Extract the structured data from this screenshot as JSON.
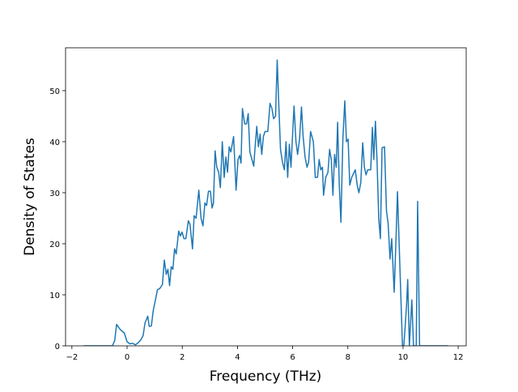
{
  "chart_data": {
    "type": "line",
    "xlabel": "Frequency (THz)",
    "ylabel": "Density of States",
    "color": "#1f77b4",
    "x": [
      -1.58,
      -0.53,
      -0.45,
      -0.38,
      -0.25,
      -0.1,
      0,
      0.1,
      0.2,
      0.3,
      0.4,
      0.5,
      0.58,
      0.65,
      0.75,
      0.8,
      0.88,
      0.95,
      1.02,
      1.1,
      1.18,
      1.28,
      1.35,
      1.42,
      1.48,
      1.54,
      1.6,
      1.66,
      1.72,
      1.78,
      1.87,
      1.93,
      1.99,
      2.06,
      2.13,
      2.22,
      2.28,
      2.37,
      2.43,
      2.5,
      2.6,
      2.68,
      2.75,
      2.82,
      2.88,
      2.95,
      3.02,
      3.08,
      3.13,
      3.19,
      3.25,
      3.32,
      3.38,
      3.45,
      3.52,
      3.58,
      3.64,
      3.7,
      3.76,
      3.86,
      3.95,
      4.02,
      4.08,
      4.13,
      4.18,
      4.26,
      4.33,
      4.39,
      4.45,
      4.59,
      4.64,
      4.7,
      4.76,
      4.82,
      4.88,
      4.94,
      5.0,
      5.1,
      5.18,
      5.25,
      5.31,
      5.38,
      5.44,
      5.5,
      5.56,
      5.63,
      5.7,
      5.76,
      5.82,
      5.88,
      5.94,
      6.05,
      6.12,
      6.18,
      6.25,
      6.32,
      6.38,
      6.45,
      6.52,
      6.58,
      6.65,
      6.75,
      6.82,
      6.9,
      6.96,
      7.02,
      7.08,
      7.12,
      7.2,
      7.28,
      7.34,
      7.4,
      7.46,
      7.52,
      7.58,
      7.63,
      7.69,
      7.75,
      7.82,
      7.89,
      7.95,
      8.01,
      8.07,
      8.14,
      8.27,
      8.34,
      8.4,
      8.47,
      8.54,
      8.6,
      8.66,
      8.72,
      8.83,
      8.89,
      8.94,
      9.0,
      9.06,
      9.12,
      9.18,
      9.24,
      9.33,
      9.4,
      9.46,
      9.53,
      9.59,
      9.68,
      9.74,
      9.8,
      9.86,
      9.92,
      9.98,
      10.03,
      10.08,
      10.13,
      10.17,
      10.23,
      10.32,
      10.38,
      10.48,
      10.53,
      10.6,
      11.64
    ],
    "values": [
      0,
      0,
      1,
      4.2,
      3.2,
      2.5,
      0.8,
      0.4,
      0.5,
      0.2,
      0.6,
      1.2,
      2,
      4.5,
      5.8,
      3.8,
      3.9,
      7,
      8.8,
      11,
      11.2,
      12,
      16.8,
      14,
      15,
      11.8,
      15.5,
      15,
      19,
      18,
      22.5,
      21.5,
      22.3,
      21,
      21,
      24.5,
      23.8,
      19,
      25.5,
      25,
      30.5,
      25,
      23.5,
      28,
      27.5,
      30.3,
      30.3,
      27,
      28,
      38.2,
      35,
      34,
      31,
      40,
      33,
      37,
      34,
      39,
      38,
      41,
      30.5,
      36.5,
      37.3,
      35.8,
      46.5,
      43.5,
      43.5,
      45.5,
      38,
      35.2,
      39,
      43,
      39,
      41.5,
      37.5,
      41,
      42,
      42,
      47.5,
      46.5,
      44.5,
      45,
      56,
      47,
      38.5,
      36,
      34.5,
      40,
      33,
      39.5,
      35,
      47,
      40,
      37.5,
      40.5,
      46.8,
      41,
      37,
      35,
      36,
      42,
      40,
      33,
      33,
      36.5,
      34.5,
      35,
      29.5,
      33,
      34,
      38.5,
      36.5,
      29.5,
      37.5,
      35,
      43.8,
      31.5,
      24.2,
      40.5,
      48,
      40,
      40.5,
      31.5,
      33,
      34.5,
      31.5,
      30,
      32,
      39.8,
      35,
      33.5,
      34.5,
      34.5,
      42.8,
      36.5,
      44,
      36,
      25,
      21,
      38.8,
      39,
      26.5,
      24,
      17,
      21,
      10.5,
      20,
      30.2,
      20,
      10,
      0,
      0,
      4,
      8,
      13,
      0,
      9,
      0,
      0,
      28.3,
      0,
      0
    ],
    "xlim": [
      -2.23,
      12.29
    ],
    "ylim": [
      0,
      58.4
    ],
    "xticks": [
      {
        "value": -2,
        "label": "−2"
      },
      0,
      2,
      4,
      6,
      8,
      10,
      12
    ],
    "yticks": [
      0,
      10,
      20,
      30,
      40,
      50
    ]
  }
}
